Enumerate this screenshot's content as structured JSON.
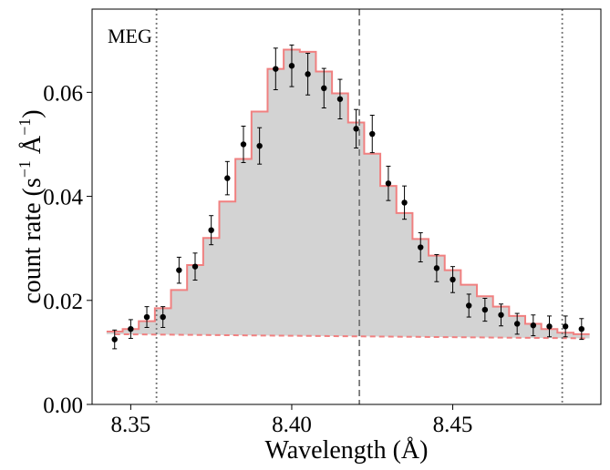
{
  "chart_data": {
    "type": "line",
    "panel_label": "MEG",
    "xlabel": "Wavelength (Å)",
    "ylabel": {
      "base": "count rate (s",
      "exp1": "−1",
      "unit": " Å",
      "exp2": "−1",
      "close": ")"
    },
    "xlim": [
      8.338,
      8.496
    ],
    "ylim": [
      0.0,
      0.076
    ],
    "xticks": [
      8.35,
      8.4,
      8.45
    ],
    "xtick_labels": [
      "8.35",
      "8.40",
      "8.45"
    ],
    "yticks": [
      0.0,
      0.02,
      0.04,
      0.06
    ],
    "ytick_labels": [
      "0.00",
      "0.02",
      "0.04",
      "0.06"
    ],
    "vlines": [
      {
        "x": 8.358,
        "style": "dotted"
      },
      {
        "x": 8.421,
        "style": "dashed"
      },
      {
        "x": 8.484,
        "style": "dotted"
      }
    ],
    "model_step": {
      "bin_width": 0.005,
      "x": [
        8.345,
        8.35,
        8.355,
        8.36,
        8.365,
        8.37,
        8.375,
        8.38,
        8.385,
        8.39,
        8.395,
        8.4,
        8.405,
        8.41,
        8.415,
        8.42,
        8.425,
        8.43,
        8.435,
        8.44,
        8.445,
        8.45,
        8.455,
        8.46,
        8.465,
        8.47,
        8.475,
        8.48,
        8.485,
        8.49
      ],
      "y": [
        0.014,
        0.0145,
        0.016,
        0.0185,
        0.022,
        0.0268,
        0.032,
        0.039,
        0.0472,
        0.0563,
        0.0645,
        0.0682,
        0.0678,
        0.064,
        0.0598,
        0.0542,
        0.0482,
        0.042,
        0.0368,
        0.0318,
        0.0286,
        0.0258,
        0.023,
        0.0208,
        0.0188,
        0.017,
        0.0155,
        0.0145,
        0.0138,
        0.0135
      ],
      "color": "#f08080",
      "fill": "#d3d3d3"
    },
    "continuum": {
      "x": [
        8.345,
        8.492
      ],
      "y": [
        0.0135,
        0.0127
      ],
      "style": "dashed",
      "color": "#f08080"
    },
    "data_points": {
      "x": [
        8.345,
        8.35,
        8.355,
        8.36,
        8.365,
        8.37,
        8.375,
        8.38,
        8.385,
        8.39,
        8.395,
        8.4,
        8.405,
        8.41,
        8.415,
        8.42,
        8.425,
        8.43,
        8.435,
        8.44,
        8.445,
        8.45,
        8.455,
        8.46,
        8.465,
        8.47,
        8.475,
        8.48,
        8.485,
        8.49
      ],
      "y": [
        0.0125,
        0.0145,
        0.0168,
        0.0168,
        0.0258,
        0.0265,
        0.0335,
        0.0435,
        0.05,
        0.0497,
        0.0645,
        0.0651,
        0.0635,
        0.0608,
        0.0587,
        0.053,
        0.052,
        0.0425,
        0.0388,
        0.0302,
        0.0262,
        0.024,
        0.019,
        0.0182,
        0.0172,
        0.0155,
        0.0152,
        0.015,
        0.015,
        0.0145
      ],
      "err": [
        0.0018,
        0.0018,
        0.002,
        0.002,
        0.0025,
        0.0026,
        0.0028,
        0.0032,
        0.0035,
        0.0035,
        0.004,
        0.004,
        0.004,
        0.0038,
        0.0038,
        0.0037,
        0.0036,
        0.0033,
        0.0032,
        0.0028,
        0.0026,
        0.0025,
        0.0022,
        0.0022,
        0.0021,
        0.002,
        0.002,
        0.002,
        0.002,
        0.002
      ],
      "color": "#000000"
    }
  }
}
